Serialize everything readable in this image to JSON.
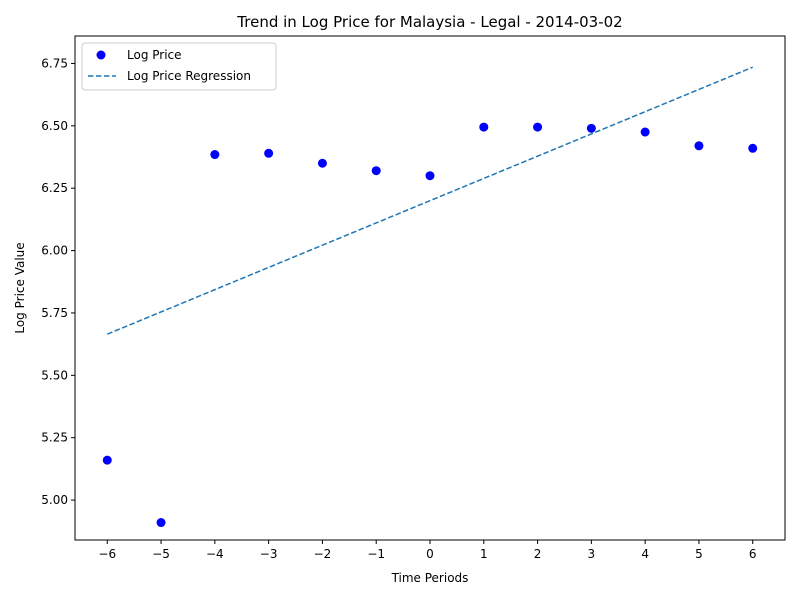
{
  "chart_data": {
    "type": "scatter",
    "title": "Trend in Log Price for Malaysia - Legal - 2014-03-02",
    "xlabel": "Time Periods",
    "ylabel": "Log Price Value",
    "xlim": [
      -6.6,
      6.6
    ],
    "ylim": [
      4.84,
      6.86
    ],
    "xticks": [
      -6,
      -5,
      -4,
      -3,
      -2,
      -1,
      0,
      1,
      2,
      3,
      4,
      5,
      6
    ],
    "xtick_labels": [
      "−6",
      "−5",
      "−4",
      "−3",
      "−2",
      "−1",
      "0",
      "1",
      "2",
      "3",
      "4",
      "5",
      "6"
    ],
    "yticks": [
      5.0,
      5.25,
      5.5,
      5.75,
      6.0,
      6.25,
      6.5,
      6.75
    ],
    "ytick_labels": [
      "5.00",
      "5.25",
      "5.50",
      "5.75",
      "6.00",
      "6.25",
      "6.50",
      "6.75"
    ],
    "grid": false,
    "legend_position": "top-left",
    "series": [
      {
        "name": "Log Price",
        "kind": "scatter",
        "color": "#0000ff",
        "x": [
          -6,
          -5,
          -4,
          -3,
          -2,
          -1,
          0,
          1,
          2,
          3,
          4,
          5,
          6
        ],
        "y": [
          5.16,
          4.91,
          6.385,
          6.39,
          6.35,
          6.32,
          6.3,
          6.495,
          6.495,
          6.49,
          6.475,
          6.42,
          6.41
        ]
      },
      {
        "name": "Log Price Regression",
        "kind": "line",
        "style": "dashed",
        "color": "#1f77b4",
        "x": [
          -6,
          6
        ],
        "y": [
          5.665,
          6.735
        ]
      }
    ]
  }
}
